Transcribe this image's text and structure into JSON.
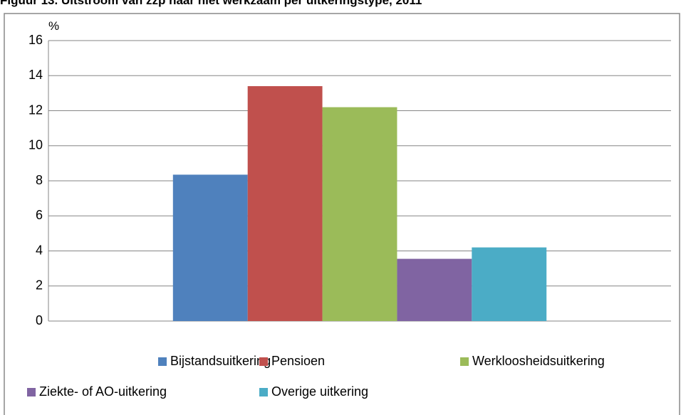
{
  "chart_data": {
    "type": "bar",
    "title": "Figuur 13.  Uitstroom van zzp naar niet werkzaam per uitkeringstype, 2011",
    "y_axis_label": "%",
    "categories": [
      null
    ],
    "series": [
      {
        "name": "Bijstandsuitkering",
        "color": "#4f81bd",
        "values": [
          8.35
        ]
      },
      {
        "name": "Pensioen",
        "color": "#c0504d",
        "values": [
          13.4
        ]
      },
      {
        "name": "Werkloosheidsuitkering",
        "color": "#9bbb59",
        "values": [
          12.2
        ]
      },
      {
        "name": "Ziekte- of AO-uitkering",
        "color": "#8064a2",
        "values": [
          3.55
        ]
      },
      {
        "name": "Overige uitkering",
        "color": "#4bacc6",
        "values": [
          4.2
        ]
      }
    ],
    "ylim": [
      0,
      16
    ],
    "yticks": [
      0,
      2,
      4,
      6,
      8,
      10,
      12,
      14,
      16
    ],
    "grid": true
  }
}
